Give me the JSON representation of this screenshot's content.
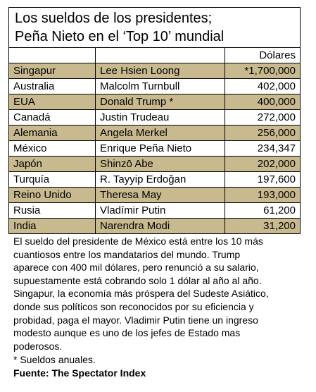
{
  "table": {
    "title_lines": [
      "Los sueldos de los presidentes;",
      "Peña Nieto en el ‘Top 10’ mundial"
    ],
    "header": "Dólares",
    "rows": [
      [
        "Singapur",
        "Lee Hsien Loong",
        "*1,700,000"
      ],
      [
        "Australia",
        "Malcolm Turnbull",
        "402,000"
      ],
      [
        "EUA",
        "Donald Trump *",
        "400,000"
      ],
      [
        "Canadá",
        "Justin Trudeau",
        "272,000"
      ],
      [
        "Alemania",
        "Angela Merkel",
        "256,000"
      ],
      [
        "México",
        "Enrique Peña Nieto",
        "234,347"
      ],
      [
        "Japón",
        "Shinzō Abe",
        "202,000"
      ],
      [
        "Turquía",
        "R. Tayyip Erdoğan",
        "197,600"
      ],
      [
        "Reino Unido",
        "Theresa May",
        "193,000"
      ],
      [
        "Rusia",
        "Vladímir Putin",
        "61,200"
      ],
      [
        "India",
        "Narendra Modi",
        "31,200"
      ]
    ]
  },
  "body": {
    "lines": [
      "El sueldo del presidente de México está entre los 10 más",
      "cuantiosos entre los mandatarios del mundo. Trump",
      "aparece con 400 mil dólares, pero renunció a su salario,",
      "supuestamente está cobrando solo 1 dólar al año al año.",
      "Singapur, la economía más próspera del Sudeste Asiático,",
      "donde sus políticos son reconocidos por su eficiencia y",
      "probidad, paga el mayor. Vladimir Putin tiene un ingreso",
      "modesto aunque es uno de los jefes de Estado mas",
      "poderosos."
    ],
    "note": "* Sueldos anuales.",
    "source": "Fuente: The Spectator Index"
  }
}
